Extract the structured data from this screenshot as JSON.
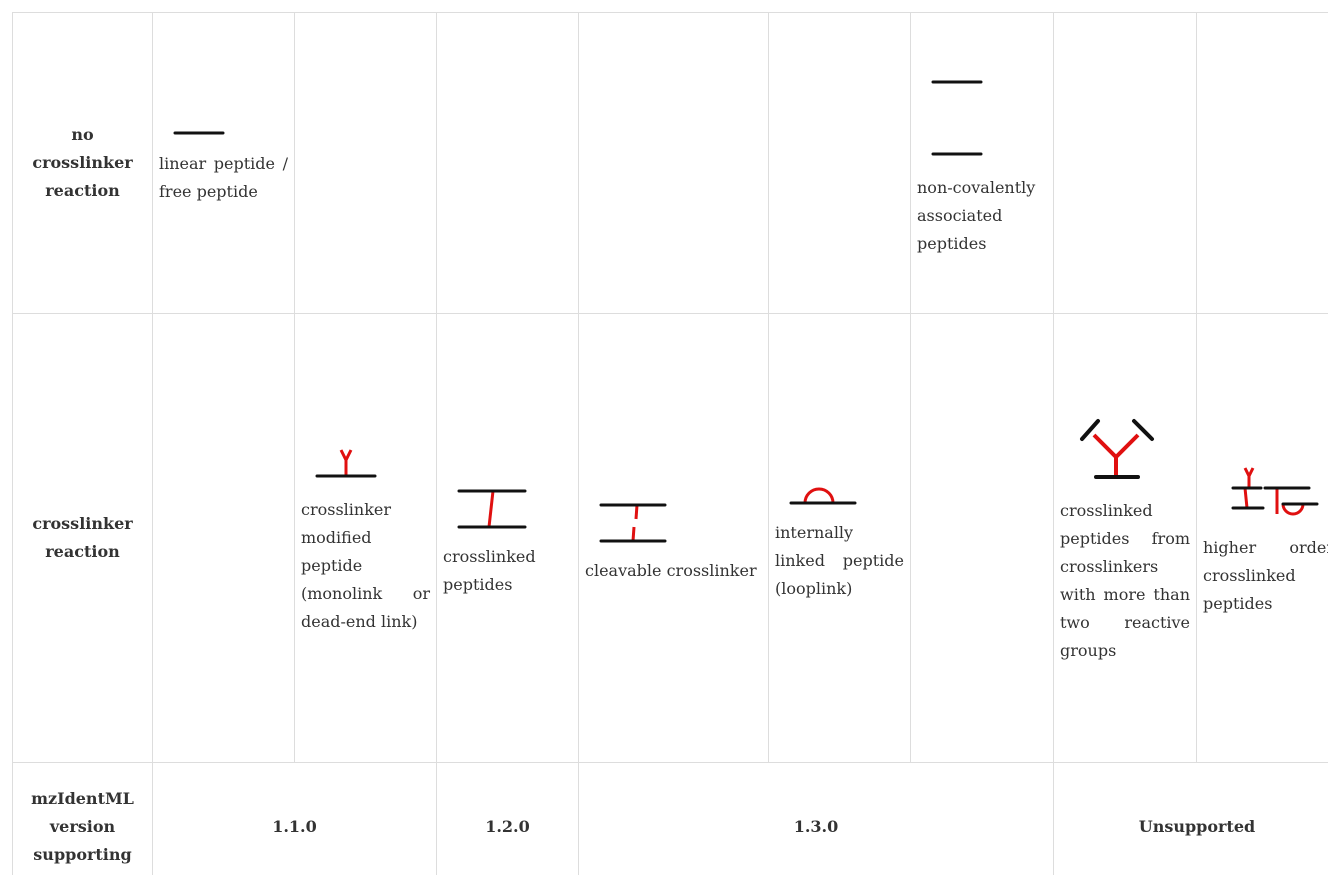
{
  "table": {
    "rows": [
      {
        "header": "no crosslinker reaction",
        "cells": [
          "linear peptide / free peptide",
          null,
          null,
          null,
          null,
          "non-covalently associated peptides",
          null,
          null
        ]
      },
      {
        "header": "crosslinker reaction",
        "cells": [
          null,
          "crosslinker modified peptide (monolink or dead-end link)",
          "crosslinked peptides",
          "cleavable crosslinker",
          "internally linked peptide (looplink)",
          null,
          "crosslinked peptides from crosslinkers with more than two reactive groups",
          "higher order crosslinked peptides"
        ]
      },
      {
        "header": "mzIdentML version supporting",
        "cells": [
          "1.1.0",
          "1.2.0",
          "1.3.0",
          "Unsupported"
        ]
      }
    ]
  }
}
